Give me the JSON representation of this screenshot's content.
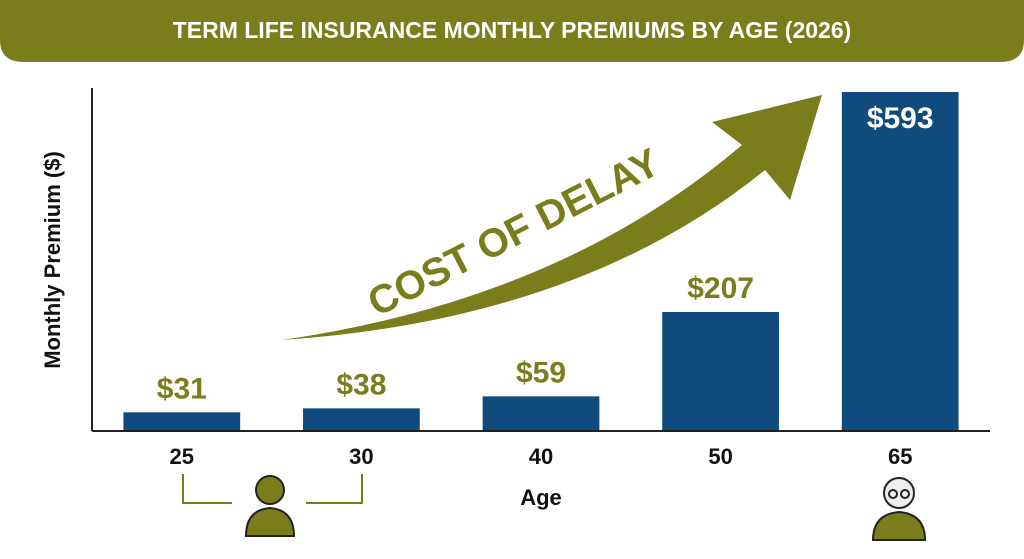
{
  "chart_data": {
    "type": "bar",
    "title": "TERM LIFE INSURANCE MONTHLY PREMIUMS BY AGE (2026)",
    "y_label": "Monthly Premium ($)",
    "x_label": "Age",
    "annotation": "COST OF DELAY",
    "categories": [
      "25",
      "30",
      "40",
      "50",
      "65"
    ],
    "values": [
      31,
      38,
      59,
      207,
      593
    ],
    "value_labels": [
      "$31",
      "$38",
      "$59",
      "$207",
      "$593"
    ],
    "color": "#114b7e",
    "ylim": [
      0,
      600
    ]
  }
}
